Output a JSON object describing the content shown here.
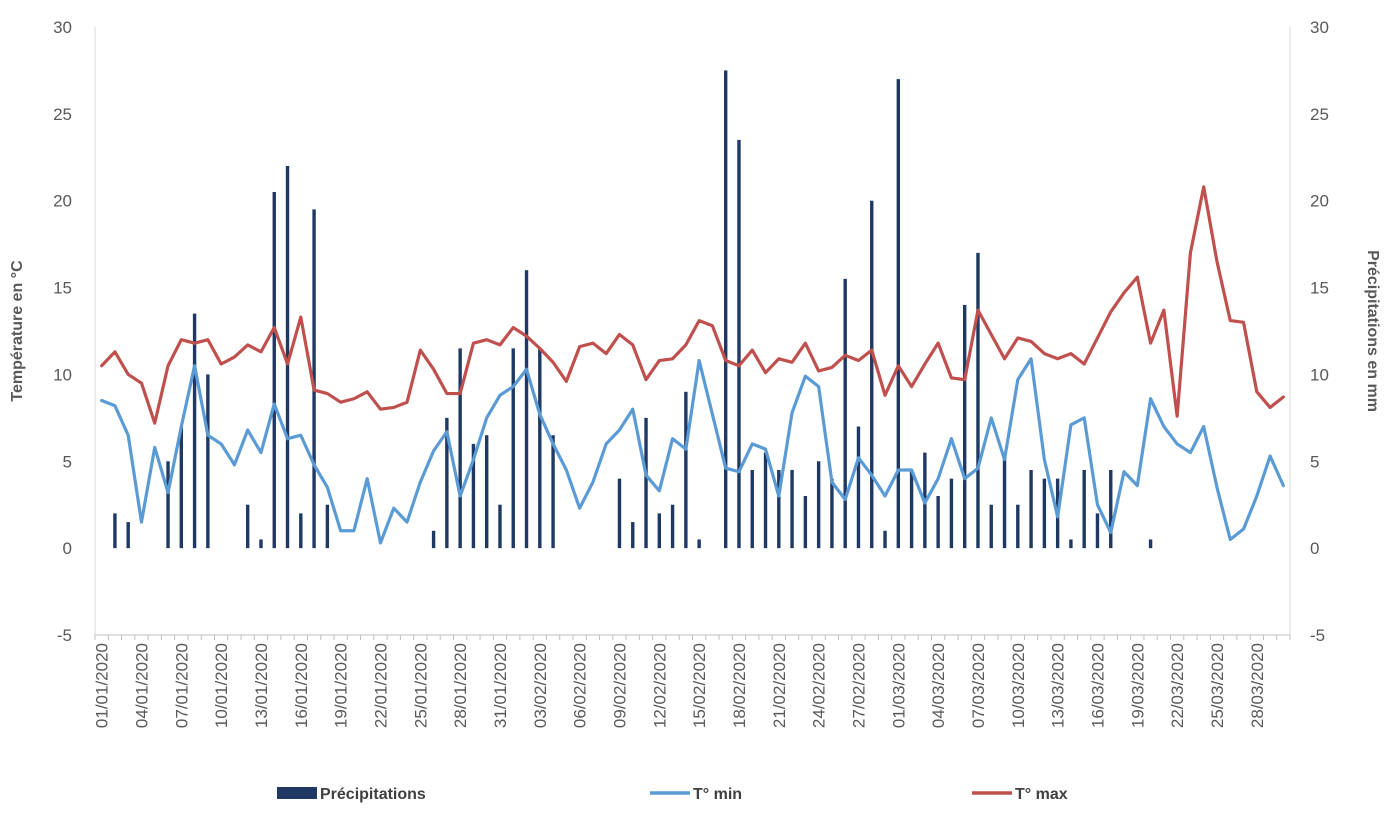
{
  "chart_data": {
    "type": "bar+line",
    "y_left_label": "Température en °C",
    "y_right_label": "Précipitations en mm",
    "ylim": [
      -5,
      30
    ],
    "y_ticks": [
      -5,
      0,
      5,
      10,
      15,
      20,
      25,
      30
    ],
    "y_ticks_right": [
      -5,
      0,
      5,
      10,
      15,
      20,
      25,
      30
    ],
    "grid": false,
    "legend_position": "bottom",
    "x_tick_labels": [
      "01/01/2020",
      "04/01/2020",
      "07/01/2020",
      "10/01/2020",
      "13/01/2020",
      "16/01/2020",
      "19/01/2020",
      "22/01/2020",
      "25/01/2020",
      "28/01/2020",
      "31/01/2020",
      "03/02/2020",
      "06/02/2020",
      "09/02/2020",
      "12/02/2020",
      "15/02/2020",
      "18/02/2020",
      "21/02/2020",
      "24/02/2020",
      "27/02/2020",
      "01/03/2020",
      "04/03/2020",
      "07/03/2020",
      "10/03/2020",
      "13/03/2020",
      "16/03/2020",
      "19/03/2020",
      "22/03/2020",
      "25/03/2020",
      "28/03/2020"
    ],
    "x_tick_every_days": 3,
    "num_days": 90,
    "first_date": "01/01/2020",
    "series": [
      {
        "name": "Précipitations",
        "type": "bar",
        "axis": "right",
        "color": "#1f3864",
        "values": [
          0,
          2,
          1.5,
          0,
          0,
          5,
          7,
          13.5,
          10,
          0,
          0,
          2.5,
          0.5,
          20.5,
          22,
          2,
          19.5,
          2.5,
          0,
          0,
          0,
          0,
          0,
          0,
          0,
          1,
          7.5,
          11.5,
          6,
          6.5,
          2.5,
          11.5,
          16,
          11.5,
          6.5,
          0,
          0,
          0,
          0,
          4,
          1.5,
          7.5,
          2,
          2.5,
          9,
          0.5,
          0,
          27.5,
          23.5,
          4.5,
          5.5,
          4.5,
          4.5,
          3,
          5,
          4,
          15.5,
          7,
          20,
          1,
          27,
          4.5,
          5.5,
          3,
          4,
          14,
          17,
          2.5,
          5.5,
          2.5,
          4.5,
          4,
          4,
          0.5,
          4.5,
          2,
          4.5,
          0,
          0,
          0.5,
          0,
          0,
          0,
          0,
          0,
          0,
          0,
          0,
          0,
          0
        ]
      },
      {
        "name": "T° min",
        "type": "line",
        "axis": "left",
        "color": "#5b9bd5",
        "values": [
          8.5,
          8.2,
          6.5,
          1.5,
          5.8,
          3.2,
          7,
          10.5,
          6.5,
          6,
          4.8,
          6.8,
          5.5,
          8.3,
          6.3,
          6.5,
          4.8,
          3.5,
          1,
          1,
          4,
          0.3,
          2.3,
          1.5,
          3.8,
          5.6,
          6.7,
          3,
          5.1,
          7.5,
          8.8,
          9.3,
          10.3,
          7.7,
          6,
          4.5,
          2.3,
          3.8,
          6,
          6.8,
          8,
          4.2,
          3.3,
          6.3,
          5.7,
          10.8,
          7.7,
          4.6,
          4.4,
          6,
          5.7,
          3,
          7.8,
          9.9,
          9.3,
          3.8,
          2.8,
          5.2,
          4.2,
          3,
          4.5,
          4.5,
          2.6,
          4,
          6.3,
          4,
          4.6,
          7.5,
          5.1,
          9.7,
          10.9,
          5.1,
          1.8,
          7.1,
          7.5,
          2.5,
          0.9,
          4.4,
          3.6,
          8.6,
          7,
          6,
          5.5,
          7,
          3.5,
          0.5,
          1.1,
          3,
          5.3,
          3.6
        ]
      },
      {
        "name": "T° max",
        "type": "line",
        "axis": "left",
        "color": "#c0504d",
        "values": [
          10.5,
          11.3,
          10,
          9.5,
          7.2,
          10.5,
          12,
          11.8,
          12,
          10.6,
          11,
          11.7,
          11.3,
          12.7,
          10.6,
          13.3,
          9.1,
          8.9,
          8.4,
          8.6,
          9,
          8,
          8.1,
          8.4,
          11.4,
          10.3,
          8.9,
          8.9,
          11.8,
          12,
          11.7,
          12.7,
          12.2,
          11.5,
          10.7,
          9.6,
          11.6,
          11.8,
          11.2,
          12.3,
          11.7,
          9.7,
          10.8,
          10.9,
          11.7,
          13.1,
          12.8,
          10.8,
          10.5,
          11.4,
          10.1,
          10.9,
          10.7,
          11.8,
          10.2,
          10.4,
          11.1,
          10.8,
          11.4,
          8.8,
          10.5,
          9.3,
          10.6,
          11.8,
          9.8,
          9.7,
          13.7,
          12.3,
          10.9,
          12.1,
          11.9,
          11.2,
          10.9,
          11.2,
          10.6,
          12.1,
          13.6,
          14.7,
          15.6,
          11.8,
          13.7,
          7.6,
          17,
          20.8,
          16.5,
          13.1,
          13,
          9,
          8.1,
          8.7
        ]
      }
    ]
  }
}
